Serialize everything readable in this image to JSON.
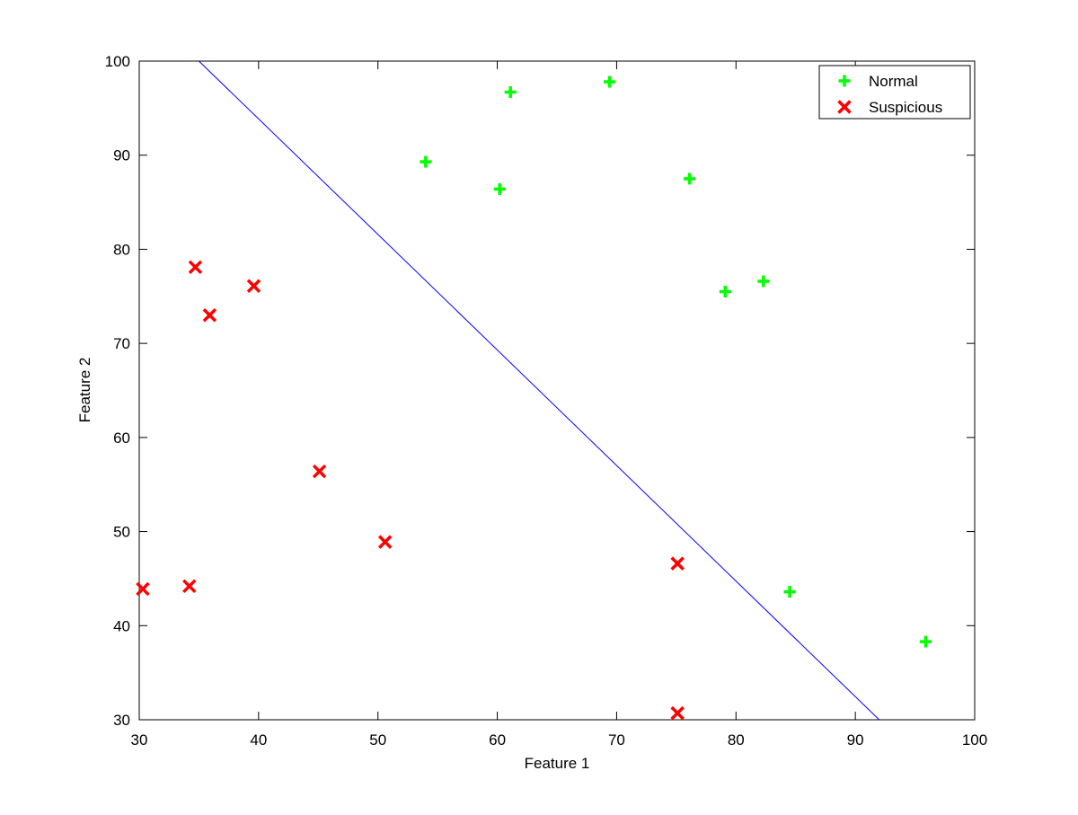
{
  "chart_data": {
    "type": "scatter",
    "title": "",
    "xlabel": "Feature 1",
    "ylabel": "Feature 2",
    "xlim": [
      30,
      100
    ],
    "ylim": [
      30,
      100
    ],
    "xticks": [
      "30",
      "40",
      "50",
      "60",
      "70",
      "80",
      "90",
      "100"
    ],
    "yticks": [
      "30",
      "40",
      "50",
      "60",
      "70",
      "80",
      "90",
      "100"
    ],
    "grid": false,
    "legend_position": "top-right",
    "series": [
      {
        "name": "Normal",
        "marker": "plus",
        "color": "#00ff00",
        "points": [
          [
            54.0,
            89.3
          ],
          [
            61.1,
            96.7
          ],
          [
            69.4,
            97.8
          ],
          [
            60.2,
            86.4
          ],
          [
            76.1,
            87.5
          ],
          [
            79.1,
            75.5
          ],
          [
            82.3,
            76.6
          ],
          [
            84.5,
            43.6
          ],
          [
            95.9,
            38.3
          ]
        ]
      },
      {
        "name": "Suspicious",
        "marker": "x",
        "color": "#ff0000",
        "points": [
          [
            34.7,
            78.1
          ],
          [
            39.6,
            76.1
          ],
          [
            35.9,
            73.0
          ],
          [
            45.1,
            56.4
          ],
          [
            50.6,
            48.9
          ],
          [
            30.3,
            43.9
          ],
          [
            34.2,
            44.2
          ],
          [
            75.1,
            46.6
          ],
          [
            75.1,
            30.7
          ]
        ]
      }
    ],
    "decision_boundary": {
      "color": "#0000ff",
      "points": [
        [
          35.0,
          100
        ],
        [
          92.0,
          30
        ]
      ]
    }
  }
}
